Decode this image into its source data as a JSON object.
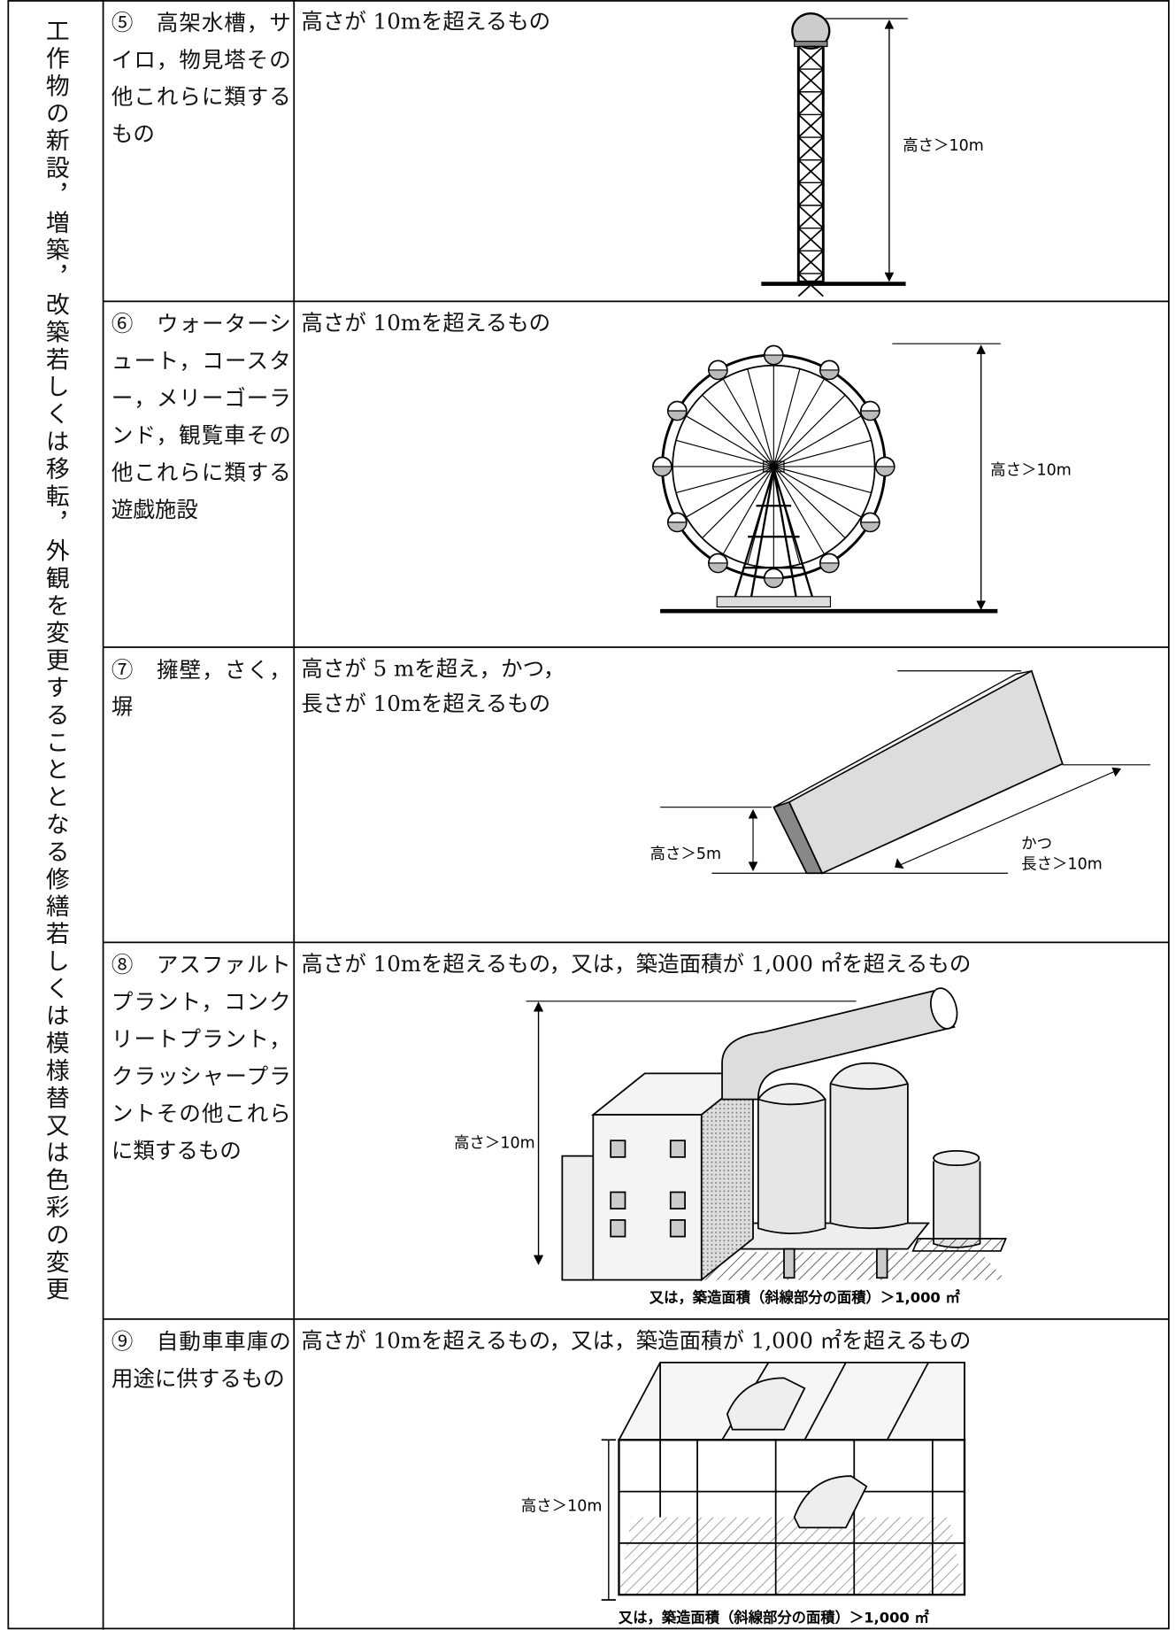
{
  "side_label": "工作物の新設，増築，改築若しくは移転，外観を変更することとなる修繕若しくは模様替又は色彩の変更",
  "rows": [
    {
      "name": "⑤　高架水槽，サイロ，物見塔その他これらに類するもの",
      "criteria": [
        "高さが 10mを超えるもの"
      ],
      "figure_labels": [
        "高さ＞10m"
      ]
    },
    {
      "name": "⑥　ウォーターシュート，コースター，メリーゴーランド，観覧車その他これらに類する遊戯施設",
      "criteria": [
        "高さが 10mを超えるもの"
      ],
      "figure_labels": [
        "高さ＞10m"
      ]
    },
    {
      "name": "⑦　擁壁，さく，塀",
      "criteria": [
        "高さが 5 mを超え，かつ，",
        "長さが 10mを超えるもの"
      ],
      "figure_labels": [
        "高さ＞5m",
        "かつ",
        "長さ＞10m"
      ]
    },
    {
      "name": "⑧　アスファルトプラント，コンクリートプラント，クラッシャープラントその他これらに類するもの",
      "criteria": [
        "高さが 10mを超えるもの，又は，築造面積が 1,000 ㎡を超えるもの"
      ],
      "figure_labels": [
        "高さ＞10m",
        "又は，築造面積（斜線部分の面積）＞1,000 ㎡"
      ]
    },
    {
      "name": "⑨　自動車車庫の用途に供するもの",
      "criteria": [
        "高さが 10mを超えるもの，又は，築造面積が 1,000 ㎡を超えるもの"
      ],
      "figure_labels": [
        "高さ＞10m",
        "又は，築造面積（斜線部分の面積）＞1,000 ㎡"
      ]
    }
  ]
}
